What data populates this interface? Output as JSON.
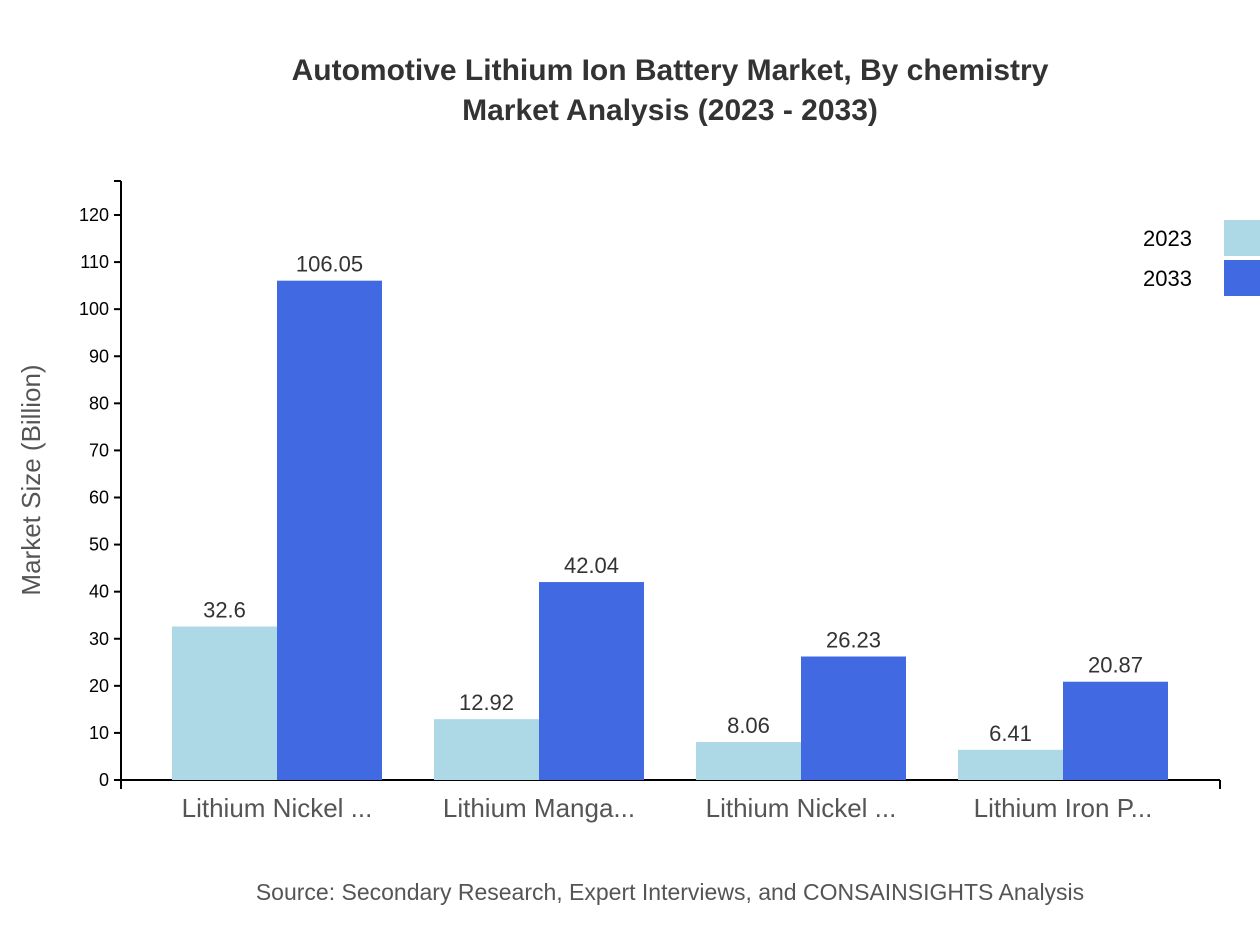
{
  "chart_data": {
    "type": "bar",
    "title": [
      "Automotive Lithium Ion Battery Market, By chemistry",
      "Market Analysis (2023 - 2033)"
    ],
    "xlabel": "",
    "ylabel": "Market Size (Billion)",
    "ylim": [
      0,
      120
    ],
    "yticks": [
      0,
      10,
      20,
      30,
      40,
      50,
      60,
      70,
      80,
      90,
      100,
      110,
      120
    ],
    "categories": [
      "Lithium Nickel ...",
      "Lithium Manga...",
      "Lithium Nickel ...",
      "Lithium Iron P..."
    ],
    "series": [
      {
        "name": "2023",
        "color": "#add8e6",
        "values": [
          32.6,
          12.92,
          8.06,
          6.41
        ]
      },
      {
        "name": "2033",
        "color": "#4169e1",
        "values": [
          106.05,
          42.04,
          26.23,
          20.87
        ]
      }
    ],
    "legend": "top-right",
    "grid": false,
    "source": "Source: Secondary Research, Expert Interviews, and CONSAINSIGHTS Analysis"
  }
}
